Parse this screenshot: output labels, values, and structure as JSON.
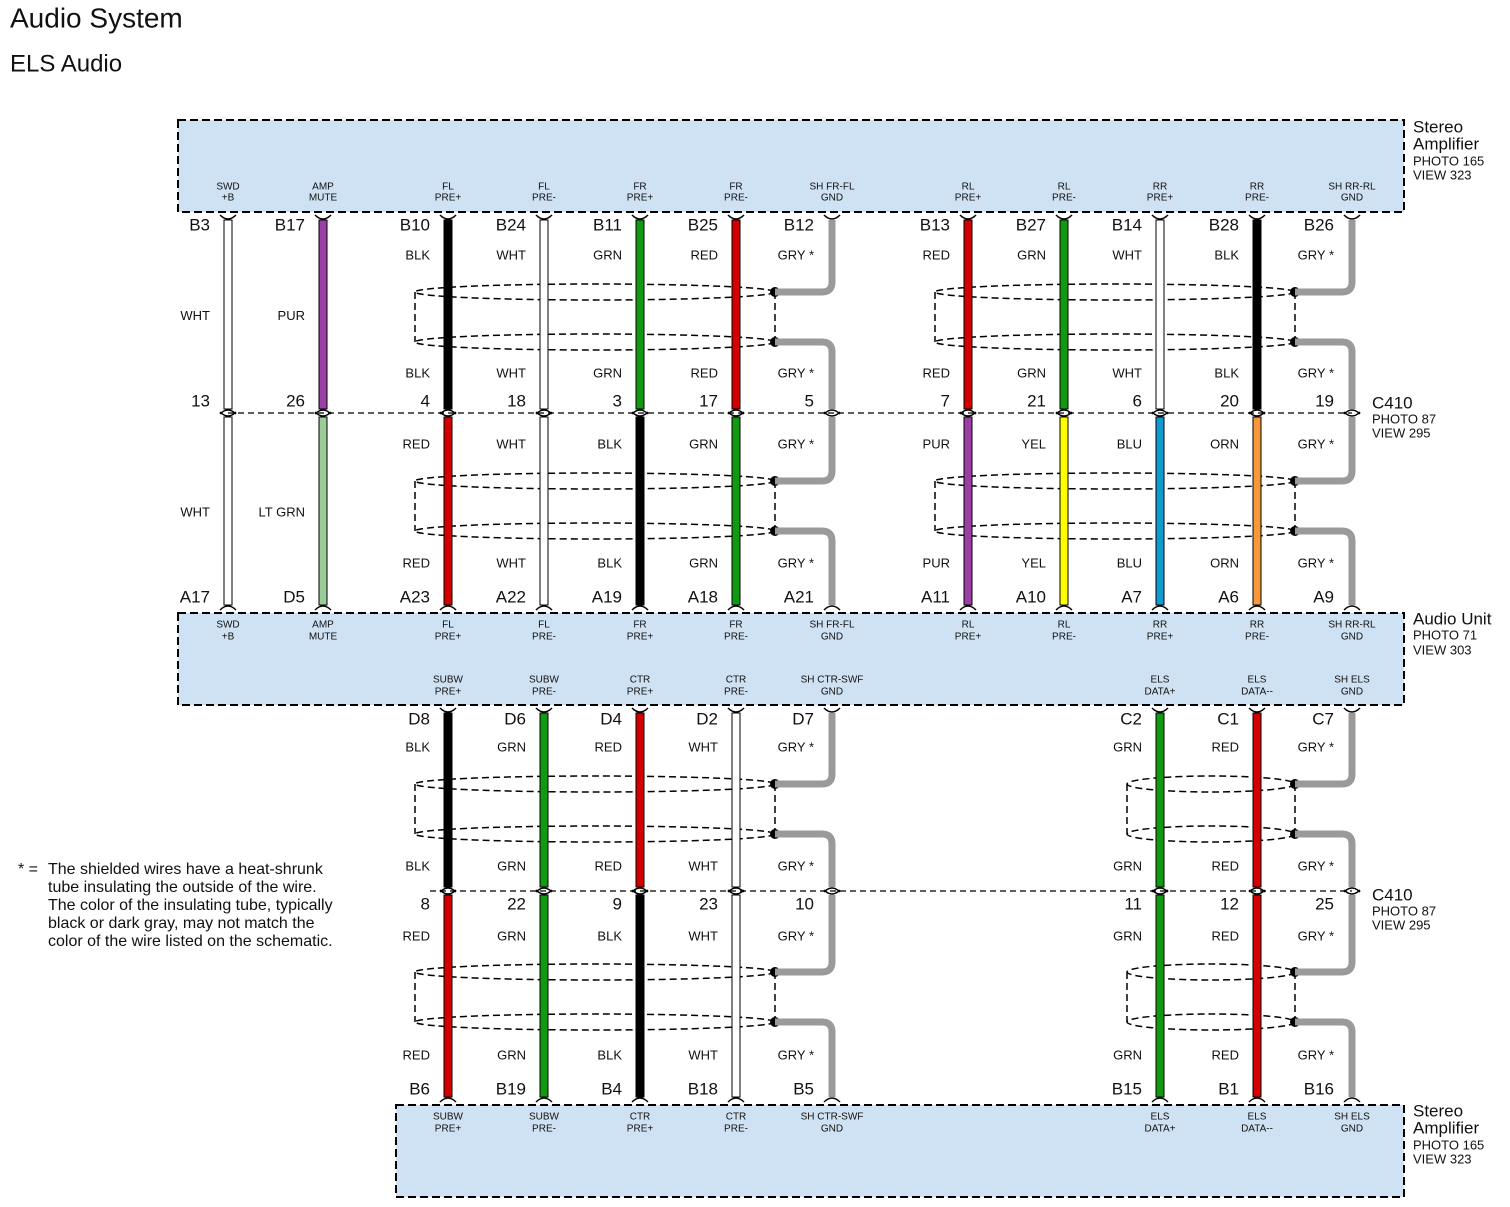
{
  "header": {
    "title": "Audio System",
    "subtitle": "ELS Audio"
  },
  "components": {
    "top_amplifier": {
      "name": [
        "Stereo",
        "Amplifier"
      ],
      "photo": "PHOTO 165",
      "view": "VIEW 323"
    },
    "audio_unit": {
      "name": [
        "Audio Unit"
      ],
      "photo": "PHOTO 71",
      "view": "VIEW 303"
    },
    "bottom_amplifier": {
      "name": [
        "Stereo",
        "Amplifier"
      ],
      "photo": "PHOTO 165",
      "view": "VIEW 323"
    }
  },
  "connectors": [
    {
      "name": "C410",
      "photo": "PHOTO 87",
      "view": "VIEW 295"
    },
    {
      "name": "C410",
      "photo": "PHOTO 87",
      "view": "VIEW 295"
    }
  ],
  "sections": [
    {
      "plain_wires": [
        {
          "top_terminal": [
            "SWD",
            "+B"
          ],
          "top_pin": "B3",
          "upper": {
            "label": "WHT",
            "color": "#ffffff"
          },
          "c410_pin": "13",
          "lower": {
            "label": "WHT",
            "color": "#ffffff"
          },
          "bottom_pin": "A17",
          "bottom_terminal": [
            "SWD",
            "+B"
          ]
        },
        {
          "top_terminal": [
            "AMP",
            "MUTE"
          ],
          "top_pin": "B17",
          "upper": {
            "label": "PUR",
            "color": "#9b3fa6"
          },
          "c410_pin": "26",
          "lower": {
            "label": "LT GRN",
            "color": "#9acd9a"
          },
          "bottom_pin": "D5",
          "bottom_terminal": [
            "AMP",
            "MUTE"
          ]
        }
      ],
      "shielded_groups": [
        {
          "wires": [
            {
              "top_terminal": [
                "FL",
                "PRE+"
              ],
              "top_pin": "B10",
              "upper": {
                "label": "BLK",
                "color": "#000000"
              },
              "c410_pin": "4",
              "lower": {
                "label": "RED",
                "color": "#d40000"
              },
              "bottom_pin": "A23",
              "bottom_terminal": [
                "FL",
                "PRE+"
              ]
            },
            {
              "top_terminal": [
                "FL",
                "PRE-"
              ],
              "top_pin": "B24",
              "upper": {
                "label": "WHT",
                "color": "#ffffff"
              },
              "c410_pin": "18",
              "lower": {
                "label": "WHT",
                "color": "#ffffff"
              },
              "bottom_pin": "A22",
              "bottom_terminal": [
                "FL",
                "PRE-"
              ]
            },
            {
              "top_terminal": [
                "FR",
                "PRE+"
              ],
              "top_pin": "B11",
              "upper": {
                "label": "GRN",
                "color": "#119a11"
              },
              "c410_pin": "3",
              "lower": {
                "label": "BLK",
                "color": "#000000"
              },
              "bottom_pin": "A19",
              "bottom_terminal": [
                "FR",
                "PRE+"
              ]
            },
            {
              "top_terminal": [
                "FR",
                "PRE-"
              ],
              "top_pin": "B25",
              "upper": {
                "label": "RED",
                "color": "#d40000"
              },
              "c410_pin": "17",
              "lower": {
                "label": "GRN",
                "color": "#119a11"
              },
              "bottom_pin": "A18",
              "bottom_terminal": [
                "FR",
                "PRE-"
              ]
            }
          ],
          "drain": {
            "top_terminal": [
              "SH FR-FL",
              "GND"
            ],
            "top_pin": "B12",
            "upper": {
              "label": "GRY *",
              "color": "#9a9a9a"
            },
            "c410_pin": "5",
            "lower": {
              "label": "GRY *",
              "color": "#9a9a9a"
            },
            "bottom_pin": "A21",
            "bottom_terminal": [
              "SH FR-FL",
              "GND"
            ]
          }
        },
        {
          "wires": [
            {
              "top_terminal": [
                "RL",
                "PRE+"
              ],
              "top_pin": "B13",
              "upper": {
                "label": "RED",
                "color": "#d40000"
              },
              "c410_pin": "7",
              "lower": {
                "label": "PUR",
                "color": "#9b3fa6"
              },
              "bottom_pin": "A11",
              "bottom_terminal": [
                "RL",
                "PRE+"
              ]
            },
            {
              "top_terminal": [
                "RL",
                "PRE-"
              ],
              "top_pin": "B27",
              "upper": {
                "label": "GRN",
                "color": "#119a11"
              },
              "c410_pin": "21",
              "lower": {
                "label": "YEL",
                "color": "#ffff00"
              },
              "bottom_pin": "A10",
              "bottom_terminal": [
                "RL",
                "PRE-"
              ]
            },
            {
              "top_terminal": [
                "RR",
                "PRE+"
              ],
              "top_pin": "B14",
              "upper": {
                "label": "WHT",
                "color": "#ffffff"
              },
              "c410_pin": "6",
              "lower": {
                "label": "BLU",
                "color": "#0f9bd0"
              },
              "bottom_pin": "A7",
              "bottom_terminal": [
                "RR",
                "PRE+"
              ]
            },
            {
              "top_terminal": [
                "RR",
                "PRE-"
              ],
              "top_pin": "B28",
              "upper": {
                "label": "BLK",
                "color": "#000000"
              },
              "c410_pin": "20",
              "lower": {
                "label": "ORN",
                "color": "#f7983a"
              },
              "bottom_pin": "A6",
              "bottom_terminal": [
                "RR",
                "PRE-"
              ]
            }
          ],
          "drain": {
            "top_terminal": [
              "SH RR-RL",
              "GND"
            ],
            "top_pin": "B26",
            "upper": {
              "label": "GRY *",
              "color": "#9a9a9a"
            },
            "c410_pin": "19",
            "lower": {
              "label": "GRY *",
              "color": "#9a9a9a"
            },
            "bottom_pin": "A9",
            "bottom_terminal": [
              "SH RR-RL",
              "GND"
            ]
          }
        }
      ]
    },
    {
      "plain_wires": [],
      "shielded_groups": [
        {
          "wires": [
            {
              "top_terminal": [
                "SUBW",
                "PRE+"
              ],
              "top_pin": "D8",
              "upper": {
                "label": "BLK",
                "color": "#000000"
              },
              "c410_pin": "8",
              "lower": {
                "label": "RED",
                "color": "#d40000"
              },
              "bottom_pin": "B6",
              "bottom_terminal": [
                "SUBW",
                "PRE+"
              ]
            },
            {
              "top_terminal": [
                "SUBW",
                "PRE-"
              ],
              "top_pin": "D6",
              "upper": {
                "label": "GRN",
                "color": "#119a11"
              },
              "c410_pin": "22",
              "lower": {
                "label": "GRN",
                "color": "#119a11"
              },
              "bottom_pin": "B19",
              "bottom_terminal": [
                "SUBW",
                "PRE-"
              ]
            },
            {
              "top_terminal": [
                "CTR",
                "PRE+"
              ],
              "top_pin": "D4",
              "upper": {
                "label": "RED",
                "color": "#d40000"
              },
              "c410_pin": "9",
              "lower": {
                "label": "BLK",
                "color": "#000000"
              },
              "bottom_pin": "B4",
              "bottom_terminal": [
                "CTR",
                "PRE+"
              ]
            },
            {
              "top_terminal": [
                "CTR",
                "PRE-"
              ],
              "top_pin": "D2",
              "upper": {
                "label": "WHT",
                "color": "#ffffff"
              },
              "c410_pin": "23",
              "lower": {
                "label": "WHT",
                "color": "#ffffff"
              },
              "bottom_pin": "B18",
              "bottom_terminal": [
                "CTR",
                "PRE-"
              ]
            }
          ],
          "drain": {
            "top_terminal": [
              "SH CTR-SWF",
              "GND"
            ],
            "top_pin": "D7",
            "upper": {
              "label": "GRY *",
              "color": "#9a9a9a"
            },
            "c410_pin": "10",
            "lower": {
              "label": "GRY *",
              "color": "#9a9a9a"
            },
            "bottom_pin": "B5",
            "bottom_terminal": [
              "SH CTR-SWF",
              "GND"
            ]
          }
        },
        {
          "wires": [
            {
              "top_terminal": [
                "ELS",
                "DATA+"
              ],
              "top_pin": "C2",
              "upper": {
                "label": "GRN",
                "color": "#119a11"
              },
              "c410_pin": "11",
              "lower": {
                "label": "GRN",
                "color": "#119a11"
              },
              "bottom_pin": "B15",
              "bottom_terminal": [
                "ELS",
                "DATA+"
              ]
            },
            {
              "top_terminal": [
                "ELS",
                "DATA--"
              ],
              "top_pin": "C1",
              "upper": {
                "label": "RED",
                "color": "#d40000"
              },
              "c410_pin": "12",
              "lower": {
                "label": "RED",
                "color": "#d40000"
              },
              "bottom_pin": "B1",
              "bottom_terminal": [
                "ELS",
                "DATA--"
              ]
            }
          ],
          "drain": {
            "top_terminal": [
              "SH ELS",
              "GND"
            ],
            "top_pin": "C7",
            "upper": {
              "label": "GRY *",
              "color": "#9a9a9a"
            },
            "c410_pin": "25",
            "lower": {
              "label": "GRY *",
              "color": "#9a9a9a"
            },
            "bottom_pin": "B16",
            "bottom_terminal": [
              "SH ELS",
              "GND"
            ]
          }
        }
      ]
    }
  ],
  "note": {
    "marker": "* =",
    "lines": [
      "The shielded wires have a heat-shrunk",
      "tube insulating the outside of the wire.",
      "The color of the insulating tube, typically",
      "black or dark gray, may not match the",
      "color of the wire listed on the schematic."
    ]
  }
}
